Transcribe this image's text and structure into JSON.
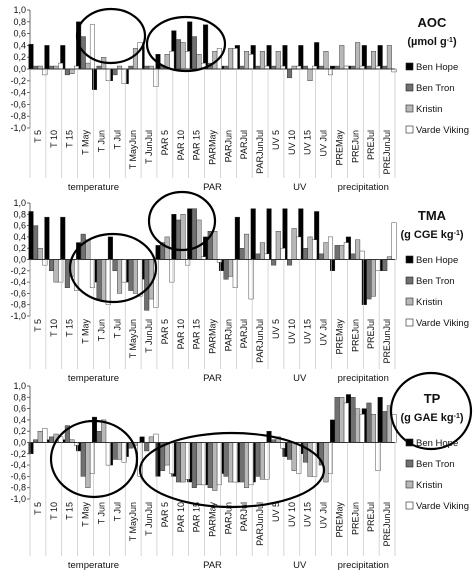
{
  "chart_data": [
    {
      "type": "bar",
      "title": "AOC",
      "unit": "(µmol g",
      "unit_sup": "-1",
      "unit_end": ")",
      "ylim": [
        -1.0,
        1.0
      ],
      "yticks": [
        "-1,0",
        "-0,8",
        "-0,6",
        "-0,4",
        "-0,2",
        "0,0",
        "0,2",
        "0,4",
        "0,6",
        "0,8",
        "1,0"
      ],
      "categories": [
        "T 5",
        "T 10",
        "T 15",
        "T May",
        "T Jun",
        "T Jul",
        "T MayJun",
        "T JunJul",
        "PAR 5",
        "PAR 10",
        "PAR 15",
        "PARMay",
        "PARJun",
        "PARJul",
        "PARJunJul",
        "UV 5",
        "UV 10",
        "UV 15",
        "UV Jul",
        "PREMay",
        "PREJun",
        "PREJul",
        "PREJunJul"
      ],
      "series": [
        {
          "name": "Ben Hope",
          "values": [
            0.42,
            0.4,
            0.4,
            0.8,
            -0.35,
            -0.2,
            -0.25,
            0.4,
            0.25,
            0.65,
            0.8,
            0.75,
            0.05,
            0.4,
            0.4,
            0.4,
            0.4,
            0.4,
            0.45,
            0.05,
            0.05,
            0.4,
            0.4
          ]
        },
        {
          "name": "Ben Tron",
          "values": [
            0.05,
            0.05,
            -0.1,
            0.55,
            0.05,
            -0.1,
            0.05,
            0.05,
            0.05,
            0.5,
            0.55,
            0.1,
            0.05,
            0.05,
            0.05,
            0.05,
            -0.15,
            0.05,
            0.05,
            0.05,
            0.05,
            0.05,
            0.05
          ]
        },
        {
          "name": "Kristin",
          "values": [
            0.05,
            0.05,
            -0.08,
            0.1,
            0.2,
            0.05,
            0.35,
            0.05,
            0.25,
            0.45,
            0.25,
            0.3,
            0.35,
            0.3,
            0.3,
            0.3,
            0.05,
            -0.2,
            0.3,
            0.4,
            0.45,
            0.3,
            0.4
          ]
        },
        {
          "name": "Varde Viking",
          "values": [
            -0.1,
            0.1,
            0.05,
            0.75,
            -0.2,
            -0.25,
            0.45,
            -0.3,
            0.3,
            0.3,
            0.1,
            0.35,
            0.35,
            0.25,
            0.05,
            0.05,
            0.05,
            0.05,
            -0.1,
            0.05,
            0.05,
            0.05,
            -0.05
          ]
        }
      ]
    },
    {
      "type": "bar",
      "title": "TMA",
      "unit": "(g CGE kg",
      "unit_sup": "-1",
      "unit_end": ")",
      "ylim": [
        -1.0,
        1.0
      ],
      "yticks": [
        "-1,0",
        "-0,8",
        "-0,6",
        "-0,4",
        "-0,2",
        "0,0",
        "0,2",
        "0,4",
        "0,6",
        "0,8",
        "1,0"
      ],
      "categories": [
        "T 5",
        "T 10",
        "T 15",
        "T May",
        "T Jun",
        "T Jul",
        "T MayJun",
        "T JunJul",
        "PAR 5",
        "PAR 10",
        "PAR 15",
        "PARMay",
        "PARJun",
        "PARJul",
        "PARJunJul",
        "UV 5",
        "UV 10",
        "UV 15",
        "UV Jul",
        "PREMay",
        "PREJun",
        "PREJul",
        "PREJunJul"
      ],
      "series": [
        {
          "name": "Ben Hope",
          "values": [
            0.85,
            0.75,
            0.75,
            0.3,
            -0.4,
            0.4,
            -0.4,
            -0.35,
            0.25,
            0.8,
            0.9,
            0.4,
            -0.2,
            0.75,
            0.9,
            0.9,
            0.9,
            0.9,
            0.85,
            -0.2,
            0.4,
            -0.8,
            -0.2
          ]
        },
        {
          "name": "Ben Tron",
          "values": [
            0.6,
            -0.2,
            -0.5,
            0.45,
            -0.7,
            -0.2,
            -0.55,
            -0.9,
            0.3,
            0.7,
            0.9,
            0.5,
            -0.35,
            0.2,
            0.1,
            -0.1,
            -0.1,
            0.2,
            0.1,
            0.25,
            0.1,
            -0.7,
            -0.2
          ]
        },
        {
          "name": "Kristin",
          "values": [
            0.2,
            -0.4,
            -0.3,
            0.35,
            -0.75,
            -0.6,
            -0.6,
            -0.7,
            0.4,
            0.8,
            0.7,
            0.5,
            -0.3,
            0.45,
            0.3,
            0.5,
            0.55,
            0.4,
            0.3,
            0.25,
            0.35,
            -0.65,
            0.05
          ]
        },
        {
          "name": "Varde Viking",
          "values": [
            -0.1,
            -0.4,
            -0.55,
            -0.5,
            -0.8,
            -0.4,
            -0.65,
            -0.85,
            -0.4,
            -0.1,
            0.05,
            -0.05,
            -0.5,
            -0.7,
            0.1,
            0.2,
            0.4,
            0.35,
            0.4,
            0.3,
            0.15,
            -0.2,
            0.65
          ]
        }
      ]
    },
    {
      "type": "bar",
      "title": "TP",
      "unit": "(g GAE kg",
      "unit_sup": "-1",
      "unit_end": ")",
      "ylim": [
        -1.0,
        1.0
      ],
      "yticks": [
        "-1,0",
        "-0,8",
        "-0,6",
        "-0,4",
        "-0,2",
        "0,0",
        "0,2",
        "0,4",
        "0,6",
        "0,8",
        "1,0"
      ],
      "categories": [
        "T 5",
        "T 10",
        "T 15",
        "T May",
        "T Jun",
        "T Jul",
        "T MayJun",
        "T JunJul",
        "PAR 5",
        "PAR 10",
        "PAR 15",
        "PARMay",
        "PARJun",
        "PARJul",
        "PARJunJul",
        "UV 5",
        "UV 10",
        "UV 15",
        "UV Jul",
        "PREMay",
        "PREJun",
        "PREJul",
        "PREJunJul"
      ],
      "series": [
        {
          "name": "Ben Hope",
          "values": [
            -0.2,
            0.05,
            0.05,
            -0.15,
            0.45,
            -0.4,
            -0.25,
            0.1,
            -0.6,
            -0.6,
            -0.7,
            -0.75,
            -0.55,
            -0.7,
            -0.7,
            0.2,
            -0.25,
            -0.2,
            -0.25,
            0.4,
            0.85,
            0.6,
            0.8
          ]
        },
        {
          "name": "Ben Tron",
          "values": [
            0.05,
            0.1,
            0.3,
            -0.6,
            0.2,
            -0.3,
            -0.1,
            -0.15,
            -0.5,
            -0.7,
            -0.8,
            -0.8,
            -0.6,
            -0.7,
            -0.6,
            0.05,
            -0.3,
            -0.35,
            -0.4,
            0.8,
            0.8,
            0.7,
            0.55
          ]
        },
        {
          "name": "Kristin",
          "values": [
            0.2,
            0.15,
            0.05,
            -0.8,
            0.4,
            -0.3,
            -0.05,
            0.1,
            -0.4,
            -0.7,
            -0.75,
            -0.85,
            -0.7,
            -0.8,
            -0.65,
            0.1,
            -0.5,
            -0.6,
            -0.7,
            0.8,
            0.6,
            0.5,
            0.65
          ]
        },
        {
          "name": "Varde Viking",
          "values": [
            0.25,
            0.1,
            -0.05,
            -0.55,
            -0.4,
            -0.35,
            -0.6,
            0.15,
            -0.55,
            -0.65,
            -0.75,
            -0.75,
            -0.7,
            -0.75,
            -0.65,
            -0.1,
            -0.55,
            -0.6,
            -0.55,
            0.7,
            0.5,
            -0.5,
            0.5
          ]
        }
      ]
    }
  ],
  "groups": [
    "temperature",
    "PAR",
    "UV",
    "precipitation"
  ],
  "legend": [
    "Ben Hope",
    "Ben Tron",
    "Kristin",
    "Varde Viking"
  ],
  "colors": {
    "Ben Hope": "#000000",
    "Ben Tron": "#707070",
    "Kristin": "#b8b8b8",
    "Varde Viking": "#ffffff"
  }
}
